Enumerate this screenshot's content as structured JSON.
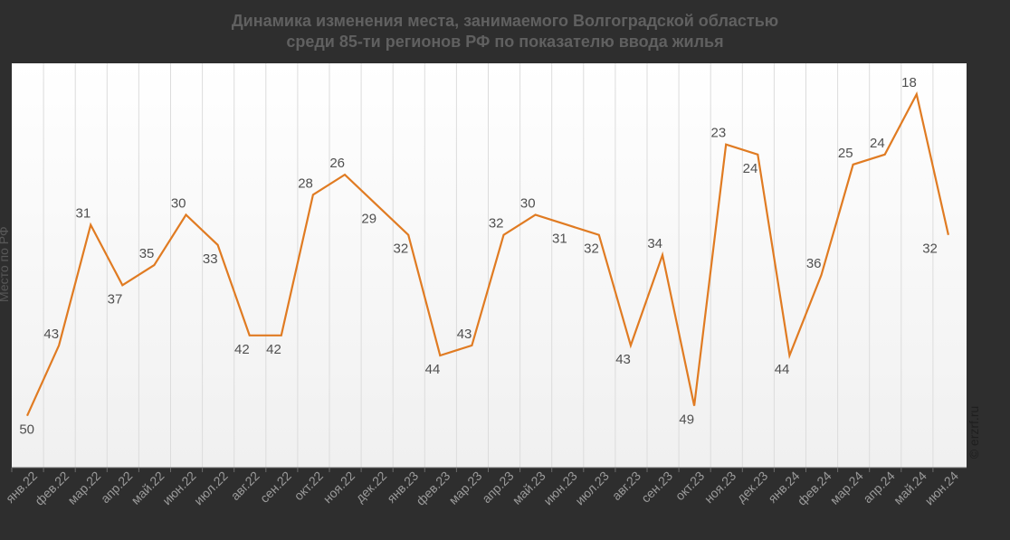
{
  "chart_data": {
    "type": "line",
    "title": [
      "Динамика изменения места, занимаемого Волгоградской областью",
      "среди 85-ти регионов РФ по показателю ввода жилья"
    ],
    "ylabel": "Место по РФ",
    "xlabel": "",
    "y_axis_inverted": true,
    "grid": "vertical",
    "categories": [
      "янв.22",
      "фев.22",
      "мар.22",
      "апр.22",
      "май.22",
      "июн.22",
      "июл.22",
      "авг.22",
      "сен.22",
      "окт.22",
      "ноя.22",
      "дек.22",
      "янв.23",
      "фев.23",
      "мар.23",
      "апр.23",
      "май.23",
      "июн.23",
      "июл.23",
      "авг.23",
      "сен.23",
      "окт.23",
      "ноя.23",
      "дек.23",
      "янв.24",
      "фев.24",
      "мар.24",
      "апр.24",
      "май.24",
      "июн.24"
    ],
    "series": [
      {
        "color": "#e07b22",
        "values": [
          50,
          43,
          31,
          37,
          35,
          30,
          33,
          42,
          42,
          28,
          26,
          29,
          32,
          44,
          43,
          32,
          30,
          31,
          32,
          43,
          34,
          49,
          23,
          24,
          44,
          36,
          25,
          24,
          18,
          32
        ]
      }
    ]
  },
  "watermark": "© erzrf.ru"
}
